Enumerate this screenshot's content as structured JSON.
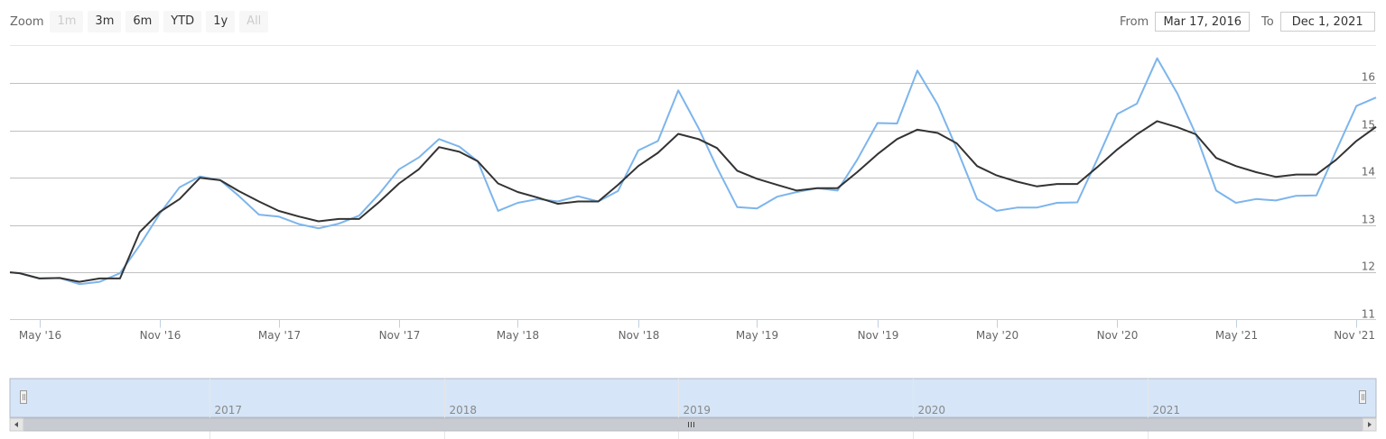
{
  "zoom": {
    "label": "Zoom",
    "buttons": [
      {
        "label": "1m",
        "enabled": false
      },
      {
        "label": "3m",
        "enabled": true
      },
      {
        "label": "6m",
        "enabled": true
      },
      {
        "label": "YTD",
        "enabled": true
      },
      {
        "label": "1y",
        "enabled": true
      },
      {
        "label": "All",
        "enabled": false
      }
    ]
  },
  "range": {
    "from_label": "From",
    "from_value": "Mar 17, 2016",
    "to_label": "To",
    "to_value": "Dec 1, 2021"
  },
  "colors": {
    "series_monthly": "#7cb5ec",
    "series_smoothed": "#333333",
    "gridline": "#c0c0c0",
    "navigator_mask": "#d6e6f8"
  },
  "chart_data": {
    "type": "line",
    "title": "",
    "xlabel": "",
    "ylabel": "",
    "ylim": [
      11,
      16.8
    ],
    "x_ticks": [
      "May '16",
      "Nov '16",
      "May '17",
      "Nov '17",
      "May '18",
      "Nov '18",
      "May '19",
      "Nov '19",
      "May '20",
      "Nov '20",
      "May '21",
      "Nov '21"
    ],
    "y_ticks": [
      11,
      12,
      13,
      14,
      15,
      16
    ],
    "grid": true,
    "navigator": {
      "year_labels": [
        "2017",
        "2018",
        "2019",
        "2020",
        "2021"
      ]
    },
    "series": [
      {
        "color": "#7cb5ec",
        "points": [
          [
            "2016-03-17",
            12.0
          ],
          [
            "2016-04-01",
            11.98
          ],
          [
            "2016-05-01",
            11.87
          ],
          [
            "2016-06-01",
            11.88
          ],
          [
            "2016-07-01",
            11.75
          ],
          [
            "2016-08-01",
            11.8
          ],
          [
            "2016-09-01",
            11.98
          ],
          [
            "2016-10-01",
            12.57
          ],
          [
            "2016-11-01",
            13.25
          ],
          [
            "2016-12-01",
            13.8
          ],
          [
            "2017-01-01",
            14.03
          ],
          [
            "2017-02-01",
            13.95
          ],
          [
            "2017-03-01",
            13.62
          ],
          [
            "2017-04-01",
            13.22
          ],
          [
            "2017-05-01",
            13.18
          ],
          [
            "2017-06-01",
            13.02
          ],
          [
            "2017-07-01",
            12.93
          ],
          [
            "2017-08-01",
            13.03
          ],
          [
            "2017-09-01",
            13.2
          ],
          [
            "2017-10-01",
            13.65
          ],
          [
            "2017-11-01",
            14.18
          ],
          [
            "2017-12-01",
            14.43
          ],
          [
            "2018-01-01",
            14.82
          ],
          [
            "2018-02-01",
            14.66
          ],
          [
            "2018-03-01",
            14.35
          ],
          [
            "2018-04-01",
            13.3
          ],
          [
            "2018-05-01",
            13.47
          ],
          [
            "2018-06-01",
            13.55
          ],
          [
            "2018-07-01",
            13.5
          ],
          [
            "2018-08-01",
            13.61
          ],
          [
            "2018-09-01",
            13.5
          ],
          [
            "2018-10-01",
            13.72
          ],
          [
            "2018-11-01",
            14.58
          ],
          [
            "2018-12-01",
            14.78
          ],
          [
            "2019-01-01",
            15.85
          ],
          [
            "2019-02-01",
            15.05
          ],
          [
            "2019-03-01",
            14.22
          ],
          [
            "2019-04-01",
            13.38
          ],
          [
            "2019-05-01",
            13.35
          ],
          [
            "2019-06-01",
            13.6
          ],
          [
            "2019-07-01",
            13.7
          ],
          [
            "2019-08-01",
            13.78
          ],
          [
            "2019-09-01",
            13.73
          ],
          [
            "2019-10-01",
            14.38
          ],
          [
            "2019-11-01",
            15.16
          ],
          [
            "2019-12-01",
            15.15
          ],
          [
            "2020-01-01",
            16.27
          ],
          [
            "2020-02-01",
            15.55
          ],
          [
            "2020-03-01",
            14.62
          ],
          [
            "2020-04-01",
            13.55
          ],
          [
            "2020-05-01",
            13.3
          ],
          [
            "2020-06-01",
            13.37
          ],
          [
            "2020-07-01",
            13.37
          ],
          [
            "2020-08-01",
            13.47
          ],
          [
            "2020-09-01",
            13.48
          ],
          [
            "2020-10-01",
            14.38
          ],
          [
            "2020-11-01",
            15.35
          ],
          [
            "2020-12-01",
            15.57
          ],
          [
            "2021-01-01",
            16.53
          ],
          [
            "2021-02-01",
            15.78
          ],
          [
            "2021-03-01",
            14.92
          ],
          [
            "2021-04-01",
            13.73
          ],
          [
            "2021-05-01",
            13.47
          ],
          [
            "2021-06-01",
            13.55
          ],
          [
            "2021-07-01",
            13.52
          ],
          [
            "2021-08-01",
            13.62
          ],
          [
            "2021-09-01",
            13.63
          ],
          [
            "2021-10-01",
            14.57
          ],
          [
            "2021-11-01",
            15.52
          ],
          [
            "2021-12-01",
            15.7
          ]
        ]
      },
      {
        "color": "#333333",
        "points": [
          [
            "2016-03-17",
            12.0
          ],
          [
            "2016-04-01",
            11.98
          ],
          [
            "2016-05-01",
            11.87
          ],
          [
            "2016-06-01",
            11.88
          ],
          [
            "2016-07-01",
            11.8
          ],
          [
            "2016-08-01",
            11.87
          ],
          [
            "2016-09-01",
            11.87
          ],
          [
            "2016-10-01",
            12.85
          ],
          [
            "2016-11-01",
            13.28
          ],
          [
            "2016-12-01",
            13.55
          ],
          [
            "2017-01-01",
            14.0
          ],
          [
            "2017-02-01",
            13.95
          ],
          [
            "2017-03-01",
            13.72
          ],
          [
            "2017-04-01",
            13.5
          ],
          [
            "2017-05-01",
            13.3
          ],
          [
            "2017-06-01",
            13.18
          ],
          [
            "2017-07-01",
            13.08
          ],
          [
            "2017-08-01",
            13.13
          ],
          [
            "2017-09-01",
            13.13
          ],
          [
            "2017-10-01",
            13.48
          ],
          [
            "2017-11-01",
            13.88
          ],
          [
            "2017-12-01",
            14.18
          ],
          [
            "2018-01-01",
            14.65
          ],
          [
            "2018-02-01",
            14.55
          ],
          [
            "2018-03-01",
            14.35
          ],
          [
            "2018-04-01",
            13.88
          ],
          [
            "2018-05-01",
            13.7
          ],
          [
            "2018-06-01",
            13.58
          ],
          [
            "2018-07-01",
            13.45
          ],
          [
            "2018-08-01",
            13.5
          ],
          [
            "2018-09-01",
            13.5
          ],
          [
            "2018-10-01",
            13.85
          ],
          [
            "2018-11-01",
            14.25
          ],
          [
            "2018-12-01",
            14.53
          ],
          [
            "2019-01-01",
            14.93
          ],
          [
            "2019-02-01",
            14.82
          ],
          [
            "2019-03-01",
            14.63
          ],
          [
            "2019-04-01",
            14.15
          ],
          [
            "2019-05-01",
            13.98
          ],
          [
            "2019-06-01",
            13.85
          ],
          [
            "2019-07-01",
            13.73
          ],
          [
            "2019-08-01",
            13.78
          ],
          [
            "2019-09-01",
            13.78
          ],
          [
            "2019-10-01",
            14.12
          ],
          [
            "2019-11-01",
            14.5
          ],
          [
            "2019-12-01",
            14.82
          ],
          [
            "2020-01-01",
            15.02
          ],
          [
            "2020-02-01",
            14.95
          ],
          [
            "2020-03-01",
            14.73
          ],
          [
            "2020-04-01",
            14.25
          ],
          [
            "2020-05-01",
            14.05
          ],
          [
            "2020-06-01",
            13.92
          ],
          [
            "2020-07-01",
            13.82
          ],
          [
            "2020-08-01",
            13.87
          ],
          [
            "2020-09-01",
            13.87
          ],
          [
            "2020-10-01",
            14.22
          ],
          [
            "2020-11-01",
            14.6
          ],
          [
            "2020-12-01",
            14.92
          ],
          [
            "2021-01-01",
            15.2
          ],
          [
            "2021-02-01",
            15.07
          ],
          [
            "2021-03-01",
            14.92
          ],
          [
            "2021-04-01",
            14.42
          ],
          [
            "2021-05-01",
            14.25
          ],
          [
            "2021-06-01",
            14.12
          ],
          [
            "2021-07-01",
            14.02
          ],
          [
            "2021-08-01",
            14.07
          ],
          [
            "2021-09-01",
            14.07
          ],
          [
            "2021-10-01",
            14.38
          ],
          [
            "2021-11-01",
            14.78
          ],
          [
            "2021-12-01",
            15.08
          ]
        ]
      }
    ]
  }
}
